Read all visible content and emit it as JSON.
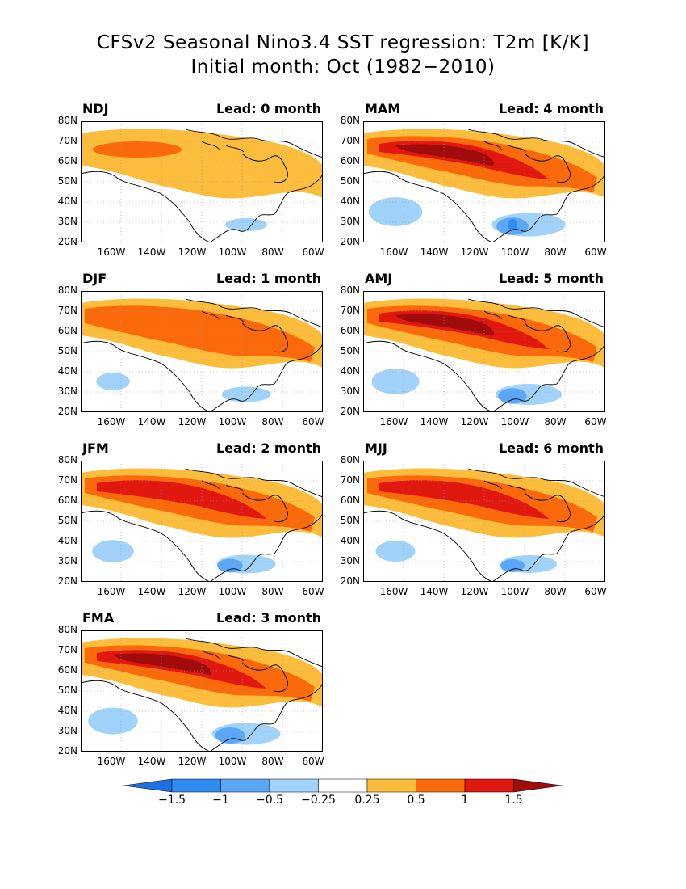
{
  "title": {
    "line1": "CFSv2 Seasonal Nino3.4 SST regression: T2m [K/K]",
    "line2": "Initial month: Oct (1982−2010)"
  },
  "axes": {
    "lat_labels": [
      "80N",
      "70N",
      "60N",
      "50N",
      "40N",
      "30N",
      "20N"
    ],
    "lon_labels": [
      "160W",
      "140W",
      "120W",
      "100W",
      "80W",
      "60W"
    ]
  },
  "panels": [
    {
      "season": "NDJ",
      "lead": "Lead: 0 month",
      "intensity": 0.35,
      "cool": 0.2
    },
    {
      "season": "DJF",
      "lead": "Lead: 1 month",
      "intensity": 0.6,
      "cool": 0.35
    },
    {
      "season": "JFM",
      "lead": "Lead: 2 month",
      "intensity": 0.75,
      "cool": 0.55
    },
    {
      "season": "FMA",
      "lead": "Lead: 3 month",
      "intensity": 0.9,
      "cool": 0.75
    },
    {
      "season": "MAM",
      "lead": "Lead: 4 month",
      "intensity": 1.0,
      "cool": 0.85
    },
    {
      "season": "AMJ",
      "lead": "Lead: 5 month",
      "intensity": 0.85,
      "cool": 0.7
    },
    {
      "season": "MJJ",
      "lead": "Lead: 6 month",
      "intensity": 0.7,
      "cool": 0.5
    }
  ],
  "colorbar": {
    "labels": [
      "−1.5",
      "−1",
      "−0.5",
      "−0.25",
      "0.25",
      "0.5",
      "1",
      "1.5"
    ],
    "colors": {
      "neg_extreme": "#1e6fe0",
      "neg3": "#2f8cf0",
      "neg2": "#5aa8f5",
      "neg1": "#a0d2fa",
      "zero": "#ffffff",
      "pos1": "#fdbd3c",
      "pos2": "#fb6a0a",
      "pos3": "#e0180f",
      "pos_extreme": "#a00c0c"
    }
  }
}
